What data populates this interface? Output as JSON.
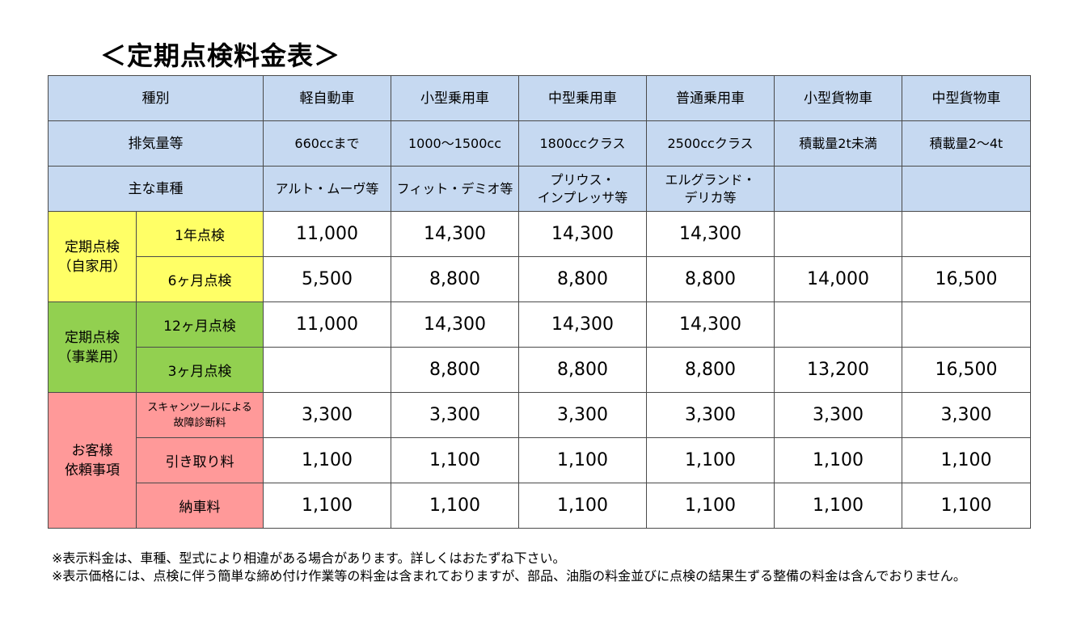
{
  "title": "＜定期点検料金表＞",
  "header": {
    "row1": {
      "label": "種別",
      "cols": [
        "軽自動車",
        "小型乗用車",
        "中型乗用車",
        "普通乗用車",
        "小型貨物車",
        "中型貨物車"
      ]
    },
    "row2": {
      "label": "排気量等",
      "cols": [
        "660ccまで",
        "1000〜1500cc",
        "1800ccクラス",
        "2500ccクラス",
        "積載量2t未満",
        "積載量2〜4t"
      ]
    },
    "row3": {
      "label": "主な車種",
      "cols": [
        "アルト・ムーヴ等",
        "フィット・デミオ等",
        "プリウス・\nインプレッサ等",
        "エルグランド・\nデリカ等",
        "",
        ""
      ]
    }
  },
  "groups": [
    {
      "label": "定期点検\n（自家用）",
      "color": "#ffff66",
      "rows": [
        {
          "label": "1年点検",
          "values": [
            "11,000",
            "14,300",
            "14,300",
            "14,300",
            "",
            ""
          ]
        },
        {
          "label": "6ヶ月点検",
          "values": [
            "5,500",
            "8,800",
            "8,800",
            "8,800",
            "14,000",
            "16,500"
          ]
        }
      ]
    },
    {
      "label": "定期点検\n（事業用）",
      "color": "#92d050",
      "rows": [
        {
          "label": "12ヶ月点検",
          "values": [
            "11,000",
            "14,300",
            "14,300",
            "14,300",
            "",
            ""
          ]
        },
        {
          "label": "3ヶ月点検",
          "values": [
            "",
            "8,800",
            "8,800",
            "8,800",
            "13,200",
            "16,500"
          ]
        }
      ]
    },
    {
      "label": "お客様\n依頼事項",
      "color": "#ff9999",
      "rows": [
        {
          "label": "スキャンツールによる\n故障診断料",
          "values": [
            "3,300",
            "3,300",
            "3,300",
            "3,300",
            "3,300",
            "3,300"
          ]
        },
        {
          "label": "引き取り料",
          "values": [
            "1,100",
            "1,100",
            "1,100",
            "1,100",
            "1,100",
            "1,100"
          ]
        },
        {
          "label": "納車料",
          "values": [
            "1,100",
            "1,100",
            "1,100",
            "1,100",
            "1,100",
            "1,100"
          ]
        }
      ]
    }
  ],
  "notes": [
    "※表示料金は、車種、型式により相違がある場合があります。詳しくはおたずね下さい。",
    "※表示価格には、点検に伴う簡単な締め付け作業等の料金は含まれておりますが、部品、油脂の料金並びに点検の結果生ずる整備の料金は含んでおりません。"
  ]
}
